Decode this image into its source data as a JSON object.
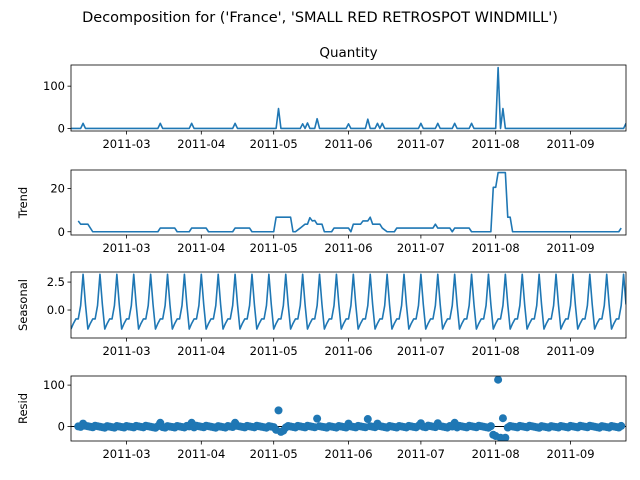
{
  "figure": {
    "suptitle": "Decomposition for ('France', 'SMALL RED RETROSPOT WINDMILL')",
    "line_color": "#1f77b4",
    "x_tick_labels": [
      "2011-03",
      "2011-04",
      "2011-05",
      "2011-06",
      "2011-07",
      "2011-08",
      "2011-09"
    ]
  },
  "chart_data": [
    {
      "type": "line",
      "title": "Quantity",
      "ylabel": "",
      "x_range": [
        "2011-02-06",
        "2011-09-24"
      ],
      "ylim": [
        -6,
        150
      ],
      "yticks": [
        0,
        100
      ],
      "spikes": [
        {
          "date": "2011-02-11",
          "value": 12
        },
        {
          "date": "2011-03-15",
          "value": 12
        },
        {
          "date": "2011-03-28",
          "value": 12
        },
        {
          "date": "2011-04-15",
          "value": 12
        },
        {
          "date": "2011-05-03",
          "value": 47
        },
        {
          "date": "2011-05-13",
          "value": 11
        },
        {
          "date": "2011-05-15",
          "value": 13
        },
        {
          "date": "2011-05-19",
          "value": 23
        },
        {
          "date": "2011-06-01",
          "value": 11
        },
        {
          "date": "2011-06-09",
          "value": 22
        },
        {
          "date": "2011-06-13",
          "value": 12
        },
        {
          "date": "2011-06-15",
          "value": 12
        },
        {
          "date": "2011-07-01",
          "value": 12
        },
        {
          "date": "2011-07-08",
          "value": 12
        },
        {
          "date": "2011-07-15",
          "value": 12
        },
        {
          "date": "2011-07-22",
          "value": 12
        },
        {
          "date": "2011-08-02",
          "value": 144
        },
        {
          "date": "2011-08-04",
          "value": 47
        },
        {
          "date": "2011-09-24",
          "value": 12
        }
      ]
    },
    {
      "type": "line",
      "title": "",
      "ylabel": "Trend",
      "x_range": [
        "2011-02-06",
        "2011-09-24"
      ],
      "ylim": [
        -1.5,
        28.5
      ],
      "yticks": [
        0,
        20
      ],
      "points": [
        [
          "2011-02-09",
          5
        ],
        [
          "2011-02-10",
          3.5
        ],
        [
          "2011-02-13",
          3.5
        ],
        [
          "2011-02-15",
          0
        ],
        [
          "2011-03-14",
          0
        ],
        [
          "2011-03-15",
          1.7
        ],
        [
          "2011-03-21",
          1.7
        ],
        [
          "2011-03-22",
          0
        ],
        [
          "2011-03-27",
          0
        ],
        [
          "2011-03-28",
          1.7
        ],
        [
          "2011-04-03",
          1.7
        ],
        [
          "2011-04-04",
          0
        ],
        [
          "2011-04-14",
          0
        ],
        [
          "2011-04-15",
          1.7
        ],
        [
          "2011-04-21",
          1.7
        ],
        [
          "2011-04-22",
          0
        ],
        [
          "2011-05-01",
          0
        ],
        [
          "2011-05-02",
          6.7
        ],
        [
          "2011-05-08",
          6.7
        ],
        [
          "2011-05-09",
          0
        ],
        [
          "2011-05-10",
          0
        ],
        [
          "2011-05-12",
          1.7
        ],
        [
          "2011-05-14",
          3.5
        ],
        [
          "2011-05-15",
          3.5
        ],
        [
          "2011-05-16",
          6.5
        ],
        [
          "2011-05-17",
          5
        ],
        [
          "2011-05-18",
          5.2
        ],
        [
          "2011-05-19",
          3.5
        ],
        [
          "2011-05-21",
          3.5
        ],
        [
          "2011-05-22",
          0
        ],
        [
          "2011-05-25",
          0
        ],
        [
          "2011-05-26",
          1.7
        ],
        [
          "2011-06-01",
          1.7
        ],
        [
          "2011-06-02",
          0
        ],
        [
          "2011-06-03",
          3.5
        ],
        [
          "2011-06-06",
          3.5
        ],
        [
          "2011-06-07",
          5
        ],
        [
          "2011-06-09",
          5
        ],
        [
          "2011-06-10",
          6.7
        ],
        [
          "2011-06-11",
          3.5
        ],
        [
          "2011-06-14",
          3.5
        ],
        [
          "2011-06-15",
          1.7
        ],
        [
          "2011-06-17",
          0
        ],
        [
          "2011-06-20",
          0
        ],
        [
          "2011-06-21",
          1.7
        ],
        [
          "2011-07-06",
          1.7
        ],
        [
          "2011-07-07",
          3.5
        ],
        [
          "2011-07-08",
          1.7
        ],
        [
          "2011-07-13",
          1.7
        ],
        [
          "2011-07-14",
          0
        ],
        [
          "2011-07-15",
          1.7
        ],
        [
          "2011-07-21",
          1.7
        ],
        [
          "2011-07-22",
          0
        ],
        [
          "2011-07-30",
          0
        ],
        [
          "2011-07-31",
          20.5
        ],
        [
          "2011-08-01",
          20.5
        ],
        [
          "2011-08-02",
          27.3
        ],
        [
          "2011-08-05",
          27.3
        ],
        [
          "2011-08-06",
          6.7
        ],
        [
          "2011-08-07",
          6.7
        ],
        [
          "2011-08-08",
          0
        ],
        [
          "2011-09-21",
          0
        ],
        [
          "2011-09-22",
          1.7
        ]
      ]
    },
    {
      "type": "line",
      "title": "",
      "ylabel": "Seasonal",
      "x_range": [
        "2011-02-06",
        "2011-09-24"
      ],
      "ylim": [
        -2.5,
        3.4
      ],
      "yticks": [
        0,
        2.5
      ],
      "ytick_labels": [
        "0.0",
        "2.5"
      ],
      "period_days": 7,
      "first_peak": "2011-02-11",
      "weekly_pattern": [
        3.2,
        0.5,
        -1.7,
        -1.2,
        -0.8,
        -0.8,
        0.4
      ]
    },
    {
      "type": "scatter",
      "title": "",
      "ylabel": "Resid",
      "x_range": [
        "2011-02-06",
        "2011-09-24"
      ],
      "ylim": [
        -35,
        122
      ],
      "yticks": [
        0,
        100
      ],
      "baseline": 0,
      "outliers": [
        {
          "date": "2011-02-11",
          "value": 7
        },
        {
          "date": "2011-03-15",
          "value": 9
        },
        {
          "date": "2011-03-28",
          "value": 9
        },
        {
          "date": "2011-04-15",
          "value": 9
        },
        {
          "date": "2011-05-02",
          "value": -8
        },
        {
          "date": "2011-05-03",
          "value": 39
        },
        {
          "date": "2011-05-04",
          "value": -13
        },
        {
          "date": "2011-05-05",
          "value": -10
        },
        {
          "date": "2011-05-19",
          "value": 19
        },
        {
          "date": "2011-06-01",
          "value": 7
        },
        {
          "date": "2011-06-09",
          "value": 18
        },
        {
          "date": "2011-06-13",
          "value": 7
        },
        {
          "date": "2011-07-01",
          "value": 8
        },
        {
          "date": "2011-07-08",
          "value": 8
        },
        {
          "date": "2011-07-15",
          "value": 9
        },
        {
          "date": "2011-07-31",
          "value": -20
        },
        {
          "date": "2011-08-01",
          "value": -23
        },
        {
          "date": "2011-08-02",
          "value": 113
        },
        {
          "date": "2011-08-03",
          "value": -27
        },
        {
          "date": "2011-08-04",
          "value": 20
        },
        {
          "date": "2011-08-05",
          "value": -27
        }
      ]
    }
  ]
}
